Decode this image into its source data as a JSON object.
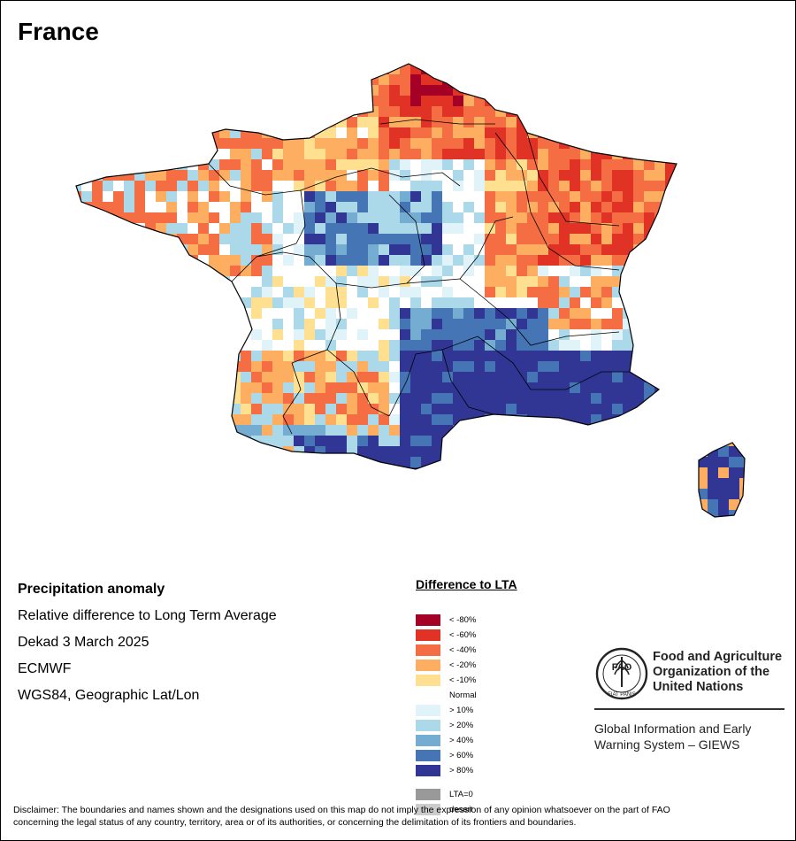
{
  "map": {
    "title": "France"
  },
  "info": {
    "line1": "Precipitation anomaly",
    "line2": "Relative difference to Long Term Average",
    "line3": "Dekad 3 March 2025",
    "line4": "ECMWF",
    "line5": "WGS84, Geographic Lat/Lon"
  },
  "legend": {
    "title": "Difference to LTA",
    "items": [
      {
        "label": "< -80%",
        "color": "#a50026"
      },
      {
        "label": "< -60%",
        "color": "#e03325"
      },
      {
        "label": "< -40%",
        "color": "#f46d43"
      },
      {
        "label": "< -20%",
        "color": "#fdae61"
      },
      {
        "label": "< -10%",
        "color": "#fee090"
      },
      {
        "label": "Normal",
        "color": "#ffffff"
      },
      {
        "label": "> 10%",
        "color": "#e0f3f8"
      },
      {
        "label": "> 20%",
        "color": "#abd9e9"
      },
      {
        "label": "> 40%",
        "color": "#74add1"
      },
      {
        "label": "> 60%",
        "color": "#4575b4"
      },
      {
        "label": "> 80%",
        "color": "#313695"
      },
      {
        "label": "LTA=0",
        "color": "#999999"
      },
      {
        "label": "desert",
        "color": "#cccccc"
      }
    ]
  },
  "logo": {
    "org_line1": "Food and Agriculture",
    "org_line2": "Organization of the",
    "org_line3": "United Nations",
    "giews_line1": "Global Information and Early",
    "giews_line2": "Warning System – GIEWS",
    "emblem_text": "FAO",
    "motto": "FIAT PANIS"
  },
  "disclaimer": {
    "line1": "Disclaimer: The boundaries and names shown and the designations used on this map do not imply the expression of any opinion whatsoever on the part of FAO",
    "line2": "concerning the legal status of any country, territory, area or of its authorities, or concerning the delimitation of its frontiers and boundaries."
  }
}
